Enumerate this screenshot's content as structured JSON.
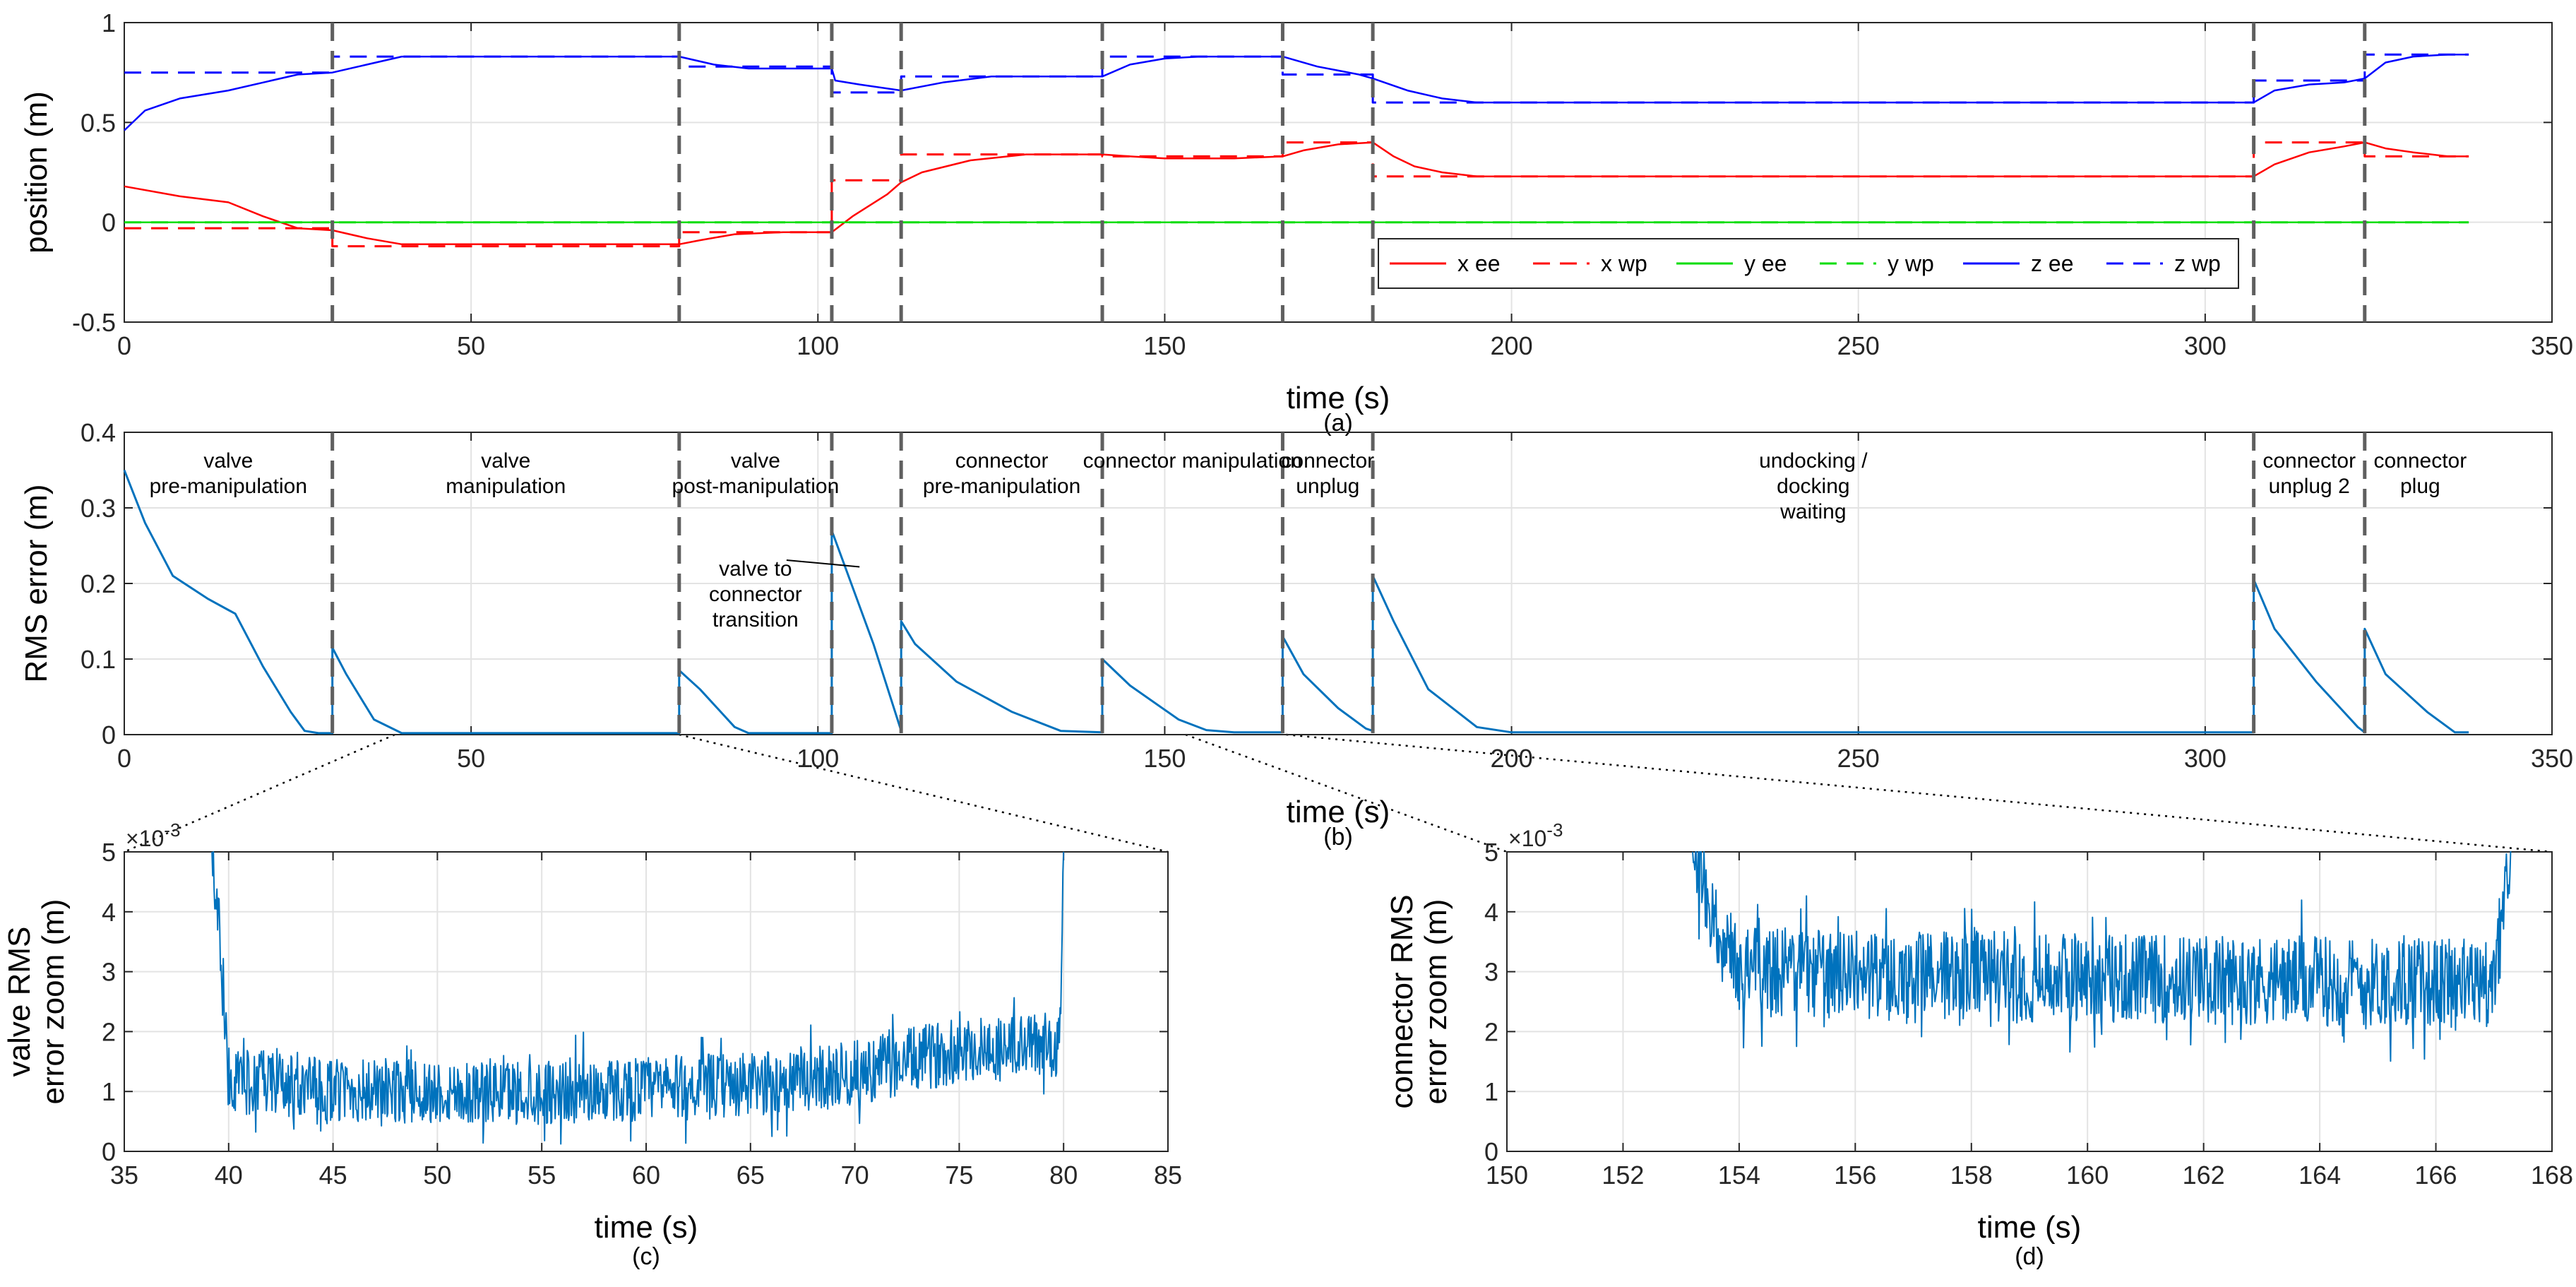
{
  "chart_data": [
    {
      "id": "a",
      "type": "line",
      "caption": "(a)",
      "xlabel": "time (s)",
      "ylabel": "position (m)",
      "xlim": [
        0,
        350
      ],
      "ylim": [
        -0.5,
        1
      ],
      "xticks": [
        0,
        50,
        100,
        150,
        200,
        250,
        300,
        350
      ],
      "yticks": [
        -0.5,
        0,
        0.5,
        1
      ],
      "xtick_labels": [
        "0",
        "50",
        "100",
        "150",
        "200",
        "250",
        "300",
        "350"
      ],
      "ytick_labels": [
        "-0.5",
        "0",
        "0.5",
        "1"
      ],
      "grid": true,
      "phase_boundaries": [
        30,
        80,
        102,
        112,
        141,
        167,
        180,
        307,
        323
      ],
      "legend": {
        "position": "lower-right",
        "entries": [
          "x ee",
          "x wp",
          "y ee",
          "y wp",
          "z ee",
          "z wp"
        ]
      },
      "series": [
        {
          "name": "x ee",
          "color": "#ff0000",
          "style": "solid",
          "x": [
            0,
            8,
            15,
            20,
            25,
            30,
            35,
            40,
            60,
            80,
            83,
            88,
            95,
            102,
            105,
            110,
            112,
            115,
            122,
            130,
            141,
            145,
            150,
            155,
            160,
            167,
            170,
            175,
            180,
            183,
            186,
            190,
            195,
            200,
            250,
            307,
            310,
            315,
            320,
            323,
            326,
            330,
            335,
            338
          ],
          "y": [
            0.18,
            0.13,
            0.1,
            0.03,
            -0.03,
            -0.04,
            -0.08,
            -0.11,
            -0.11,
            -0.11,
            -0.09,
            -0.06,
            -0.05,
            -0.05,
            0.03,
            0.14,
            0.2,
            0.25,
            0.31,
            0.34,
            0.34,
            0.33,
            0.32,
            0.32,
            0.32,
            0.33,
            0.36,
            0.39,
            0.4,
            0.33,
            0.28,
            0.25,
            0.23,
            0.23,
            0.23,
            0.23,
            0.29,
            0.35,
            0.38,
            0.4,
            0.37,
            0.35,
            0.33,
            0.33
          ]
        },
        {
          "name": "x wp",
          "color": "#ff0000",
          "style": "dashed",
          "x": [
            0,
            30,
            30,
            80,
            80,
            102,
            102,
            112,
            112,
            141,
            141,
            167,
            167,
            180,
            180,
            307,
            307,
            323,
            323,
            338
          ],
          "y": [
            -0.03,
            -0.03,
            -0.12,
            -0.12,
            -0.05,
            -0.05,
            0.21,
            0.21,
            0.34,
            0.34,
            0.33,
            0.33,
            0.4,
            0.4,
            0.23,
            0.23,
            0.4,
            0.4,
            0.33,
            0.33
          ]
        },
        {
          "name": "y ee",
          "color": "#00dd00",
          "style": "solid",
          "x": [
            0,
            338
          ],
          "y": [
            0,
            0
          ]
        },
        {
          "name": "y wp",
          "color": "#00dd00",
          "style": "dashed",
          "x": [
            0,
            338
          ],
          "y": [
            0,
            0
          ]
        },
        {
          "name": "z ee",
          "color": "#0000ff",
          "style": "solid",
          "x": [
            0,
            3,
            8,
            15,
            20,
            25,
            30,
            35,
            40,
            60,
            80,
            85,
            90,
            102,
            102.5,
            106,
            112,
            118,
            125,
            141,
            145,
            150,
            155,
            167,
            172,
            178,
            180,
            185,
            190,
            195,
            200,
            250,
            307,
            310,
            315,
            320,
            323,
            326,
            330,
            335,
            338
          ],
          "y": [
            0.46,
            0.56,
            0.62,
            0.66,
            0.7,
            0.74,
            0.75,
            0.79,
            0.83,
            0.83,
            0.83,
            0.79,
            0.77,
            0.77,
            0.71,
            0.69,
            0.66,
            0.7,
            0.73,
            0.73,
            0.79,
            0.82,
            0.83,
            0.83,
            0.78,
            0.74,
            0.72,
            0.66,
            0.62,
            0.6,
            0.6,
            0.6,
            0.6,
            0.66,
            0.69,
            0.7,
            0.72,
            0.8,
            0.83,
            0.84,
            0.84
          ]
        },
        {
          "name": "z wp",
          "color": "#0000ff",
          "style": "dashed",
          "x": [
            0,
            30,
            30,
            80,
            80,
            102,
            102,
            112,
            112,
            141,
            141,
            167,
            167,
            180,
            180,
            307,
            307,
            323,
            323,
            338
          ],
          "y": [
            0.75,
            0.75,
            0.83,
            0.83,
            0.78,
            0.78,
            0.65,
            0.65,
            0.73,
            0.73,
            0.83,
            0.83,
            0.74,
            0.74,
            0.6,
            0.6,
            0.71,
            0.71,
            0.84,
            0.84
          ]
        }
      ]
    },
    {
      "id": "b",
      "type": "line",
      "caption": "(b)",
      "xlabel": "time (s)",
      "ylabel": "RMS error (m)",
      "xlim": [
        0,
        350
      ],
      "ylim": [
        0,
        0.4
      ],
      "xticks": [
        0,
        50,
        100,
        150,
        200,
        250,
        300,
        350
      ],
      "yticks": [
        0,
        0.1,
        0.2,
        0.3,
        0.4
      ],
      "xtick_labels": [
        "0",
        "50",
        "100",
        "150",
        "200",
        "250",
        "300",
        "350"
      ],
      "ytick_labels": [
        "0",
        "0.1",
        "0.2",
        "0.3",
        "0.4"
      ],
      "grid": true,
      "phase_boundaries": [
        30,
        80,
        102,
        112,
        141,
        167,
        180,
        307,
        323
      ],
      "phases": [
        {
          "lines": [
            "valve",
            "pre-manipulation"
          ],
          "x": 15
        },
        {
          "lines": [
            "valve",
            "manipulation"
          ],
          "x": 55
        },
        {
          "lines": [
            "valve",
            "post-manipulation"
          ],
          "x": 91
        },
        {
          "lines": [
            "connector",
            "pre-manipulation"
          ],
          "x": 126.5
        },
        {
          "lines": [
            "connector manipulation"
          ],
          "x": 154
        },
        {
          "lines": [
            "connector",
            "unplug"
          ],
          "x": 173.5
        },
        {
          "lines": [
            "undocking /",
            "docking",
            "waiting"
          ],
          "x": 243.5
        },
        {
          "lines": [
            "connector",
            "unplug 2"
          ],
          "x": 315
        },
        {
          "lines": [
            "connector",
            "plug"
          ],
          "x": 331
        }
      ],
      "annotation": {
        "lines": [
          "valve to",
          "connector",
          "transition"
        ],
        "x": 91,
        "y": 0.143,
        "arrow_to": [
          106,
          0.222
        ]
      },
      "series": [
        {
          "name": "RMS error",
          "color": "#0072bd",
          "x": [
            0,
            3,
            7,
            12,
            15,
            16,
            20,
            24,
            26,
            28,
            30,
            30,
            32,
            36,
            40,
            41,
            60,
            80,
            80,
            83,
            88,
            90,
            102,
            102,
            104,
            108,
            112,
            112,
            114,
            120,
            128,
            135,
            141,
            141,
            145,
            152,
            156,
            160,
            167,
            167,
            170,
            175,
            179,
            180,
            180,
            183,
            188,
            195,
            200,
            250,
            307,
            307,
            310,
            316,
            322,
            323,
            323,
            326,
            332,
            336,
            338
          ],
          "y": [
            0.35,
            0.28,
            0.21,
            0.18,
            0.165,
            0.16,
            0.09,
            0.03,
            0.005,
            0.002,
            0.002,
            0.115,
            0.08,
            0.02,
            0.002,
            0.002,
            0.002,
            0.002,
            0.085,
            0.06,
            0.01,
            0.002,
            0.002,
            0.27,
            0.22,
            0.12,
            0.005,
            0.15,
            0.12,
            0.07,
            0.03,
            0.005,
            0.003,
            0.1,
            0.065,
            0.02,
            0.006,
            0.003,
            0.003,
            0.13,
            0.08,
            0.035,
            0.008,
            0.005,
            0.21,
            0.15,
            0.06,
            0.01,
            0.003,
            0.003,
            0.003,
            0.205,
            0.14,
            0.07,
            0.01,
            0.003,
            0.14,
            0.08,
            0.03,
            0.003,
            0.003
          ]
        }
      ],
      "zoom_regions": [
        {
          "x": [
            39,
            80
          ],
          "to": "c"
        },
        {
          "x": [
            153,
            167.5
          ],
          "to": "d"
        }
      ]
    },
    {
      "id": "c",
      "type": "line",
      "caption": "(c)",
      "xlabel": "time (s)",
      "ylabel_lines": [
        "valve RMS",
        "error zoom (m)"
      ],
      "exponent_label": "×10",
      "exponent_power": "-3",
      "xlim": [
        35,
        85
      ],
      "ylim": [
        0,
        5
      ],
      "xticks": [
        35,
        40,
        45,
        50,
        55,
        60,
        65,
        70,
        75,
        80,
        85
      ],
      "yticks": [
        0,
        1,
        2,
        3,
        4,
        5
      ],
      "xtick_labels": [
        "35",
        "40",
        "45",
        "50",
        "55",
        "60",
        "65",
        "70",
        "75",
        "80",
        "85"
      ],
      "ytick_labels": [
        "0",
        "1",
        "2",
        "3",
        "4",
        "5"
      ],
      "grid": true,
      "series": [
        {
          "name": "valve RMS error",
          "color": "#0072bd",
          "x_start": 39.2,
          "x_end": 80.0,
          "trend_x": [
            39.2,
            39.5,
            39.8,
            40,
            45,
            55,
            65,
            70,
            75,
            79.8,
            80.0
          ],
          "trend_y": [
            5.0,
            4.0,
            2.0,
            1.2,
            1.0,
            1.0,
            1.1,
            1.3,
            1.7,
            1.8,
            5.0
          ],
          "noise_amplitude": 0.55
        }
      ]
    },
    {
      "id": "d",
      "type": "line",
      "caption": "(d)",
      "xlabel": "time (s)",
      "ylabel_lines": [
        "connector RMS",
        "error zoom (m)"
      ],
      "exponent_label": "×10",
      "exponent_power": "-3",
      "xlim": [
        150,
        168
      ],
      "ylim": [
        0,
        5
      ],
      "xticks": [
        150,
        152,
        154,
        156,
        158,
        160,
        162,
        164,
        166,
        168
      ],
      "yticks": [
        0,
        1,
        2,
        3,
        4,
        5
      ],
      "xtick_labels": [
        "150",
        "152",
        "154",
        "156",
        "158",
        "160",
        "162",
        "164",
        "166",
        "168"
      ],
      "ytick_labels": [
        "0",
        "1",
        "2",
        "3",
        "4",
        "5"
      ],
      "grid": true,
      "series": [
        {
          "name": "connector RMS error",
          "color": "#0072bd",
          "x_start": 153.2,
          "x_end": 167.3,
          "trend_x": [
            153.2,
            153.4,
            153.6,
            154,
            160,
            167,
            167.3
          ],
          "trend_y": [
            5.0,
            4.5,
            3.8,
            3.0,
            2.9,
            2.8,
            5.0
          ],
          "noise_amplitude": 0.75
        }
      ]
    }
  ]
}
